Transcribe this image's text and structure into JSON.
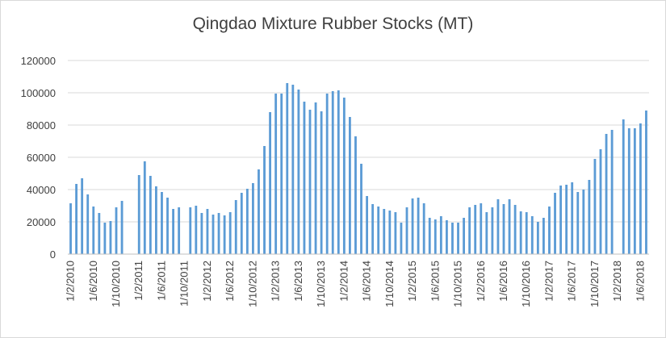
{
  "chart_data": {
    "type": "bar",
    "title": "Qingdao Mixture Rubber Stocks (MT)",
    "xlabel": "",
    "ylabel": "",
    "ylim": [
      0,
      120000
    ],
    "yticks": [
      0,
      20000,
      40000,
      60000,
      80000,
      100000,
      120000
    ],
    "grid": "horizontal",
    "legend": "none",
    "bar_color": "#5b9bd5",
    "categories": [
      "1/2/2010",
      "1/3/2010",
      "1/4/2010",
      "1/5/2010",
      "1/6/2010",
      "1/7/2010",
      "1/8/2010",
      "1/9/2010",
      "1/10/2010",
      "1/11/2010",
      "1/12/2010",
      "1/1/2011",
      "1/2/2011",
      "1/3/2011",
      "1/4/2011",
      "1/5/2011",
      "1/6/2011",
      "1/7/2011",
      "1/8/2011",
      "1/9/2011",
      "1/10/2011",
      "1/11/2011",
      "1/12/2011",
      "1/1/2012",
      "1/2/2012",
      "1/3/2012",
      "1/4/2012",
      "1/5/2012",
      "1/6/2012",
      "1/7/2012",
      "1/8/2012",
      "1/9/2012",
      "1/10/2012",
      "1/11/2012",
      "1/12/2012",
      "1/1/2013",
      "1/2/2013",
      "1/3/2013",
      "1/4/2013",
      "1/5/2013",
      "1/6/2013",
      "1/7/2013",
      "1/8/2013",
      "1/9/2013",
      "1/10/2013",
      "1/11/2013",
      "1/12/2013",
      "1/1/2014",
      "1/2/2014",
      "1/3/2014",
      "1/4/2014",
      "1/5/2014",
      "1/6/2014",
      "1/7/2014",
      "1/8/2014",
      "1/9/2014",
      "1/10/2014",
      "1/11/2014",
      "1/12/2014",
      "1/1/2015",
      "1/2/2015",
      "1/3/2015",
      "1/4/2015",
      "1/5/2015",
      "1/6/2015",
      "1/7/2015",
      "1/8/2015",
      "1/9/2015",
      "1/10/2015",
      "1/11/2015",
      "1/12/2015",
      "1/1/2016",
      "1/2/2016",
      "1/3/2016",
      "1/4/2016",
      "1/5/2016",
      "1/6/2016",
      "1/7/2016",
      "1/8/2016",
      "1/9/2016",
      "1/10/2016",
      "1/11/2016",
      "1/12/2016",
      "1/1/2017",
      "1/2/2017",
      "1/3/2017",
      "1/4/2017",
      "1/5/2017",
      "1/6/2017",
      "1/7/2017",
      "1/8/2017",
      "1/9/2017",
      "1/10/2017",
      "1/11/2017",
      "1/12/2017",
      "1/1/2018",
      "1/2/2018",
      "1/3/2018",
      "1/4/2018",
      "1/5/2018",
      "1/6/2018",
      "1/7/2018"
    ],
    "tick_labels": [
      "1/2/2010",
      "1/6/2010",
      "1/10/2010",
      "1/2/2011",
      "1/6/2011",
      "1/10/2011",
      "1/2/2012",
      "1/6/2012",
      "1/10/2012",
      "1/2/2013",
      "1/6/2013",
      "1/10/2013",
      "1/2/2014",
      "1/6/2014",
      "1/10/2014",
      "1/2/2015",
      "1/6/2015",
      "1/10/2015",
      "1/2/2016",
      "1/6/2016",
      "1/10/2016",
      "1/2/2017",
      "1/6/2017",
      "1/10/2017",
      "1/2/2018",
      "1/6/2018"
    ],
    "series": [
      {
        "values": [
          31500,
          43500,
          47000,
          37000,
          29500,
          25500,
          19500,
          20500,
          29000,
          33000,
          null,
          null,
          49000,
          57500,
          48500,
          42000,
          38500,
          35000,
          28000,
          29000,
          null,
          29000,
          30000,
          25500,
          28000,
          24500,
          25500,
          24000,
          26000,
          33500,
          38000,
          40500,
          44000,
          52500,
          67000,
          88000,
          99500,
          99500,
          106000,
          105000,
          102000,
          94500,
          89500,
          94000,
          88500,
          99500,
          101000,
          101500,
          97000,
          85000,
          73000,
          56000,
          36000,
          31000,
          29500,
          28000,
          27000,
          26000,
          19500,
          29000,
          34500,
          35000,
          31500,
          22500,
          21500,
          23500,
          21000,
          19500,
          19500,
          22500,
          29000,
          30500,
          31500,
          26000,
          29000,
          34000,
          31000,
          34000,
          30500,
          26500,
          26000,
          23500,
          20000,
          22500,
          29500,
          38000,
          42500,
          43000,
          44500,
          38500,
          40000,
          46000,
          59000,
          65000,
          74500,
          77000,
          null,
          83500,
          78000,
          78000,
          81000,
          89000
        ]
      }
    ]
  }
}
